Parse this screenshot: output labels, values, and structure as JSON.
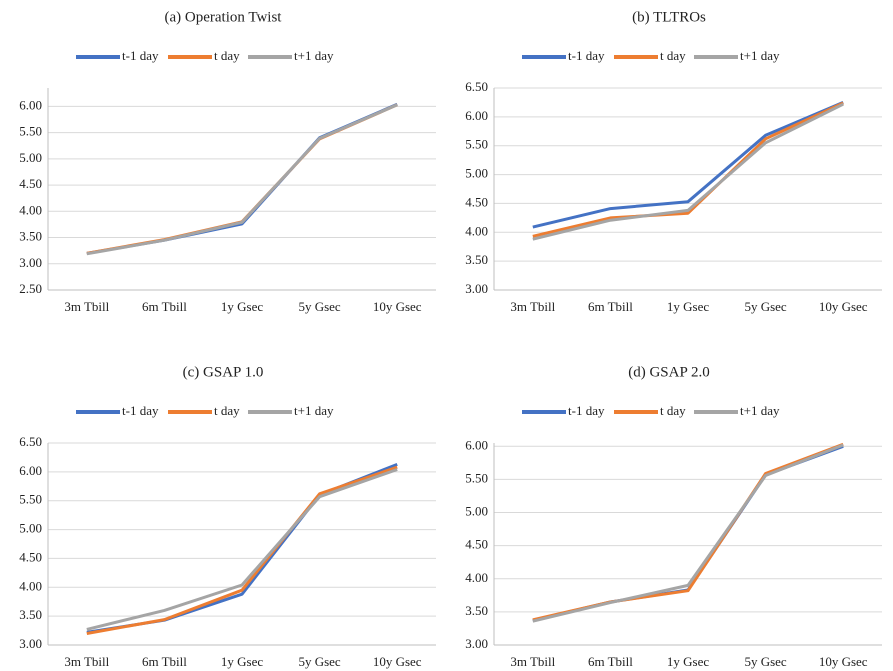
{
  "chart_data": [
    {
      "type": "line",
      "title": "(a) Operation Twist",
      "categories": [
        "3m Tbill",
        "6m Tbill",
        "1y Gsec",
        "5y Gsec",
        "10y Gsec"
      ],
      "series": [
        {
          "name": "t-1 day",
          "color": "#4472c4",
          "values": [
            3.2,
            3.45,
            3.76,
            5.4,
            6.04
          ]
        },
        {
          "name": "t day",
          "color": "#ed7d31",
          "values": [
            3.2,
            3.46,
            3.8,
            5.38,
            6.03
          ]
        },
        {
          "name": "t+1 day",
          "color": "#a5a5a5",
          "values": [
            3.19,
            3.45,
            3.79,
            5.39,
            6.03
          ]
        }
      ],
      "ylim": [
        2.5,
        6.35
      ],
      "yticks": [
        {
          "value": 2.5,
          "label": "2.50"
        },
        {
          "value": 3,
          "label": "3.00"
        },
        {
          "value": 3.5,
          "label": "3.50"
        },
        {
          "value": 4,
          "label": "4.00"
        },
        {
          "value": 4.5,
          "label": "4.50"
        },
        {
          "value": 5,
          "label": "5.00"
        },
        {
          "value": 5.5,
          "label": "5.50"
        },
        {
          "value": 6,
          "label": "6.00"
        }
      ],
      "grid": true,
      "legend": "top"
    },
    {
      "type": "line",
      "title": "(b) TLTROs",
      "categories": [
        "3m Tbill",
        "6m Tbill",
        "1y Gsec",
        "5y Gsec",
        "10y Gsec"
      ],
      "series": [
        {
          "name": "t-1 day",
          "color": "#4472c4",
          "values": [
            4.09,
            4.41,
            4.53,
            5.68,
            6.25
          ]
        },
        {
          "name": "t day",
          "color": "#ed7d31",
          "values": [
            3.93,
            4.25,
            4.33,
            5.62,
            6.24
          ]
        },
        {
          "name": "t+1 day",
          "color": "#a5a5a5",
          "values": [
            3.88,
            4.21,
            4.38,
            5.55,
            6.22
          ]
        }
      ],
      "ylim": [
        3,
        6.5
      ],
      "yticks": [
        {
          "value": 3,
          "label": "3.00"
        },
        {
          "value": 3.5,
          "label": "3.50"
        },
        {
          "value": 4,
          "label": "4.00"
        },
        {
          "value": 4.5,
          "label": "4.50"
        },
        {
          "value": 5,
          "label": "5.00"
        },
        {
          "value": 5.5,
          "label": "5.50"
        },
        {
          "value": 6,
          "label": "6.00"
        },
        {
          "value": 6.5,
          "label": "6.50"
        }
      ],
      "grid": true,
      "legend": "top"
    },
    {
      "type": "line",
      "title": "(c) GSAP 1.0",
      "categories": [
        "3m Tbill",
        "6m Tbill",
        "1y Gsec",
        "5y Gsec",
        "10y Gsec"
      ],
      "series": [
        {
          "name": "t-1 day",
          "color": "#4472c4",
          "values": [
            3.22,
            3.43,
            3.88,
            5.6,
            6.13
          ]
        },
        {
          "name": "t day",
          "color": "#ed7d31",
          "values": [
            3.2,
            3.44,
            3.95,
            5.62,
            6.08
          ]
        },
        {
          "name": "t+1 day",
          "color": "#a5a5a5",
          "values": [
            3.27,
            3.6,
            4.04,
            5.57,
            6.04
          ]
        }
      ],
      "ylim": [
        3,
        6.5
      ],
      "yticks": [
        {
          "value": 3,
          "label": "3.00"
        },
        {
          "value": 3.5,
          "label": "3.50"
        },
        {
          "value": 4,
          "label": "4.00"
        },
        {
          "value": 4.5,
          "label": "4.50"
        },
        {
          "value": 5,
          "label": "5.00"
        },
        {
          "value": 5.5,
          "label": "5.50"
        },
        {
          "value": 6,
          "label": "6.00"
        },
        {
          "value": 6.5,
          "label": "6.50"
        }
      ],
      "grid": true,
      "legend": "top"
    },
    {
      "type": "line",
      "title": "(d) GSAP 2.0",
      "categories": [
        "3m Tbill",
        "6m Tbill",
        "1y Gsec",
        "5y Gsec",
        "10y Gsec"
      ],
      "series": [
        {
          "name": "t-1 day",
          "color": "#4472c4",
          "values": [
            3.37,
            3.65,
            3.83,
            5.57,
            6.0
          ]
        },
        {
          "name": "t day",
          "color": "#ed7d31",
          "values": [
            3.38,
            3.65,
            3.82,
            5.59,
            6.03
          ]
        },
        {
          "name": "t+1 day",
          "color": "#a5a5a5",
          "values": [
            3.36,
            3.64,
            3.9,
            5.56,
            6.02
          ]
        }
      ],
      "ylim": [
        3,
        6.05
      ],
      "yticks": [
        {
          "value": 3,
          "label": "3.00"
        },
        {
          "value": 3.5,
          "label": "3.50"
        },
        {
          "value": 4,
          "label": "4.00"
        },
        {
          "value": 4.5,
          "label": "4.50"
        },
        {
          "value": 5,
          "label": "5.00"
        },
        {
          "value": 5.5,
          "label": "5.50"
        },
        {
          "value": 6,
          "label": "6.00"
        }
      ],
      "grid": true,
      "legend": "top"
    }
  ]
}
